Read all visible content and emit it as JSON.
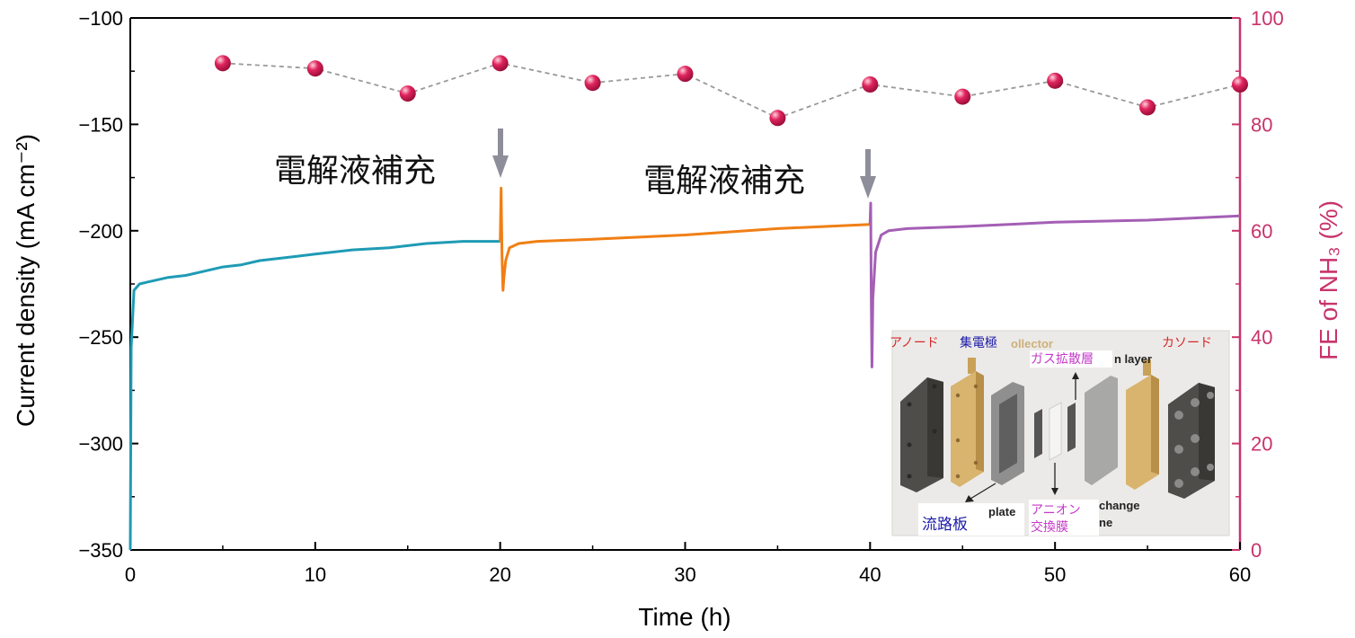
{
  "chart_data": {
    "type": "line",
    "xlabel": "Time (h)",
    "ylabel_left": "Current density (mA cm⁻²)",
    "ylabel_right": "FE of NH₃ (%)",
    "xlim": [
      0,
      60
    ],
    "ylim_left": [
      -350,
      -100
    ],
    "ylim_right": [
      0,
      100
    ],
    "x_ticks": [
      "0",
      "10",
      "20",
      "30",
      "40",
      "50",
      "60"
    ],
    "y_left_ticks": [
      "−100",
      "−150",
      "−200",
      "−250",
      "−300",
      "−350"
    ],
    "y_right_ticks": [
      "100",
      "80",
      "60",
      "40",
      "20",
      "0"
    ],
    "colors": {
      "segment1": "#1f9bb5",
      "segment2": "#f07f15",
      "segment3": "#a45fb5",
      "fe_points": "#e0245e",
      "fe_line": "#999999",
      "right_axis": "#c8336b",
      "arrow": "#8e8e9a"
    },
    "current_segments": [
      {
        "color_key": "segment1",
        "x": [
          0,
          0.05,
          0.2,
          0.5,
          1,
          2,
          3,
          4,
          5,
          6,
          7,
          8,
          9,
          10,
          12,
          14,
          16,
          18,
          20
        ],
        "y": [
          -350,
          -255,
          -228,
          -225,
          -224,
          -222,
          -221,
          -219,
          -217,
          -216,
          -214,
          -213,
          -212,
          -211,
          -209,
          -208,
          -206,
          -205,
          -205
        ]
      },
      {
        "color_key": "segment2",
        "x": [
          20,
          20.05,
          20.1,
          20.15,
          20.2,
          20.3,
          20.5,
          21,
          22,
          25,
          30,
          35,
          40
        ],
        "y": [
          -205,
          -180,
          -212,
          -228,
          -222,
          -214,
          -208,
          -206,
          -205,
          -204,
          -202,
          -199,
          -197
        ]
      },
      {
        "color_key": "segment3",
        "x": [
          40,
          40.03,
          40.06,
          40.1,
          40.15,
          40.3,
          40.6,
          41,
          42,
          45,
          50,
          55,
          60
        ],
        "y": [
          -197,
          -187,
          -230,
          -264,
          -232,
          -210,
          -202,
          -200,
          -199,
          -198,
          -196,
          -195,
          -193
        ]
      }
    ],
    "fe_series": {
      "x": [
        5,
        10,
        15,
        20,
        25,
        30,
        35,
        40,
        45,
        50,
        55,
        60
      ],
      "y": [
        91.5,
        90.5,
        85.8,
        91.5,
        87.8,
        89.5,
        81.2,
        87.5,
        85.2,
        88.2,
        83.2,
        87.5
      ]
    },
    "annotations": [
      {
        "text": "電解液補充",
        "arrow_x": 20
      },
      {
        "text": "電解液補充",
        "arrow_x": 40
      }
    ]
  },
  "inset": {
    "label_anode": "アノード",
    "label_collector": "集電極",
    "label_collector_en": "ollector",
    "label_cathode": "カソード",
    "label_gdl": "ガス拡散層",
    "label_gdl_en": "n layer",
    "label_flow_plate": "流路板",
    "label_flow_plate_en": "plate",
    "label_aem_1": "アニオン",
    "label_aem_2": "交換膜",
    "label_aem_en_1": "change",
    "label_aem_en_2": "ne"
  }
}
